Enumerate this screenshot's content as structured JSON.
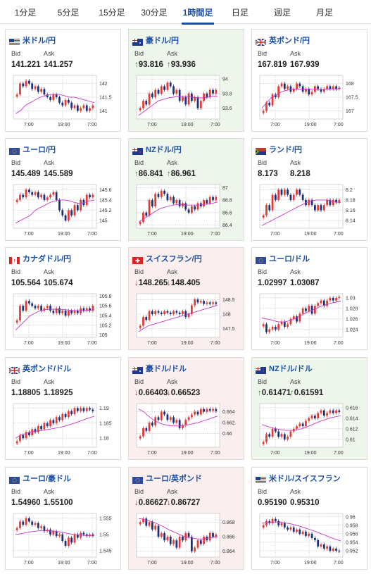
{
  "tabs": [
    "1分足",
    "5分足",
    "15分足",
    "30分足",
    "1時間足",
    "日足",
    "週足",
    "月足"
  ],
  "active_tab": 4,
  "labels": {
    "bid": "Bid",
    "ask": "Ask"
  },
  "colors": {
    "accent": "#1a4fa3",
    "up_bg": "#eef6ec",
    "down_bg": "#fbeeee",
    "candle_up": "#e53935",
    "candle_down": "#1c2f7a",
    "ma": "#c836c8"
  },
  "cards": [
    {
      "title": "米ドル/円",
      "bid": "141.221",
      "ask": "141.257",
      "trend": "none",
      "flag": "us",
      "ticks": [
        "142",
        "141.5",
        "141"
      ],
      "ylim": [
        140.7,
        142.3
      ],
      "xlabels": [
        "7:00",
        "19:00",
        "7:00"
      ],
      "chart_data": {
        "type": "candlestick",
        "ylim": [
          140.7,
          142.3
        ],
        "closes": [
          141.6,
          142.0,
          141.9,
          142.1,
          142.0,
          141.8,
          141.9,
          141.7,
          141.8,
          141.6,
          141.5,
          141.4,
          141.6,
          141.5,
          141.3,
          141.2,
          141.4,
          141.3,
          141.1,
          141.2,
          141.0,
          141.1,
          141.2,
          141.0,
          141.1,
          141.2
        ],
        "ma": [
          140.9,
          141.0,
          141.2,
          141.3,
          141.4,
          141.5,
          141.55,
          141.6,
          141.6,
          141.6,
          141.55,
          141.5,
          141.5,
          141.45,
          141.4,
          141.35,
          141.3
        ]
      }
    },
    {
      "title": "豪ドル/円",
      "bid": "93.816",
      "ask": "93.936",
      "trend": "up",
      "flag": "au",
      "ticks": [
        "94",
        "93.8",
        "93.6"
      ],
      "ylim": [
        93.45,
        94.05
      ],
      "xlabels": [
        "7:00",
        "19:00",
        "7:00"
      ],
      "chart_data": {
        "type": "candlestick",
        "ylim": [
          93.45,
          94.05
        ],
        "closes": [
          93.6,
          93.7,
          93.65,
          93.8,
          93.75,
          93.85,
          93.8,
          93.9,
          93.85,
          93.95,
          93.9,
          93.8,
          93.85,
          93.7,
          93.75,
          93.65,
          93.8,
          93.7,
          93.75,
          93.6,
          93.7,
          93.8,
          93.75,
          93.85,
          93.8,
          93.85
        ],
        "ma": [
          93.5,
          93.55,
          93.6,
          93.65,
          93.7,
          93.72,
          93.74,
          93.75,
          93.76,
          93.76,
          93.76,
          93.75,
          93.74,
          93.74,
          93.75,
          93.76,
          93.76
        ]
      }
    },
    {
      "title": "英ポンド/円",
      "bid": "167.819",
      "ask": "167.939",
      "trend": "none",
      "flag": "gb",
      "ticks": [
        "168",
        "167.5",
        "167"
      ],
      "ylim": [
        166.7,
        168.3
      ],
      "xlabels": [
        "7:00",
        "19:00",
        "7:00"
      ],
      "chart_data": {
        "type": "candlestick",
        "ylim": [
          166.7,
          168.3
        ],
        "closes": [
          167.0,
          167.3,
          167.2,
          167.6,
          167.5,
          167.9,
          168.0,
          167.8,
          167.9,
          167.7,
          167.8,
          168.0,
          167.9,
          167.7,
          167.8,
          167.6,
          167.7,
          167.9,
          167.8,
          167.7,
          167.8,
          167.9,
          167.8,
          167.9,
          167.8,
          167.85
        ],
        "ma": [
          167.1,
          167.3,
          167.5,
          167.6,
          167.7,
          167.75,
          167.8,
          167.8,
          167.8,
          167.8,
          167.8,
          167.78,
          167.78,
          167.8,
          167.8,
          167.8,
          167.82
        ]
      }
    },
    {
      "title": "ユーロ/円",
      "bid": "145.489",
      "ask": "145.589",
      "trend": "none",
      "flag": "eu",
      "ticks": [
        "145.6",
        "145.4",
        "145.2",
        "145"
      ],
      "ylim": [
        144.85,
        145.7
      ],
      "xlabels": [
        "7:00",
        "19:00",
        "7:00"
      ],
      "chart_data": {
        "type": "candlestick",
        "ylim": [
          144.85,
          145.7
        ],
        "closes": [
          145.4,
          145.5,
          145.45,
          145.6,
          145.55,
          145.5,
          145.55,
          145.45,
          145.5,
          145.4,
          145.45,
          145.5,
          145.55,
          145.4,
          145.2,
          145.1,
          145.0,
          145.2,
          145.1,
          145.3,
          145.2,
          145.4,
          145.3,
          145.5,
          145.45,
          145.5
        ],
        "ma": [
          144.95,
          145.0,
          145.05,
          145.1,
          145.2,
          145.25,
          145.3,
          145.35,
          145.38,
          145.4,
          145.4,
          145.38,
          145.35,
          145.33,
          145.35,
          145.38,
          145.4
        ]
      }
    },
    {
      "title": "NZドル/円",
      "bid": "86.841",
      "ask": "86.961",
      "trend": "up",
      "flag": "nz",
      "ticks": [
        "87",
        "86.8",
        "86.6",
        "86.4"
      ],
      "ylim": [
        86.35,
        87.05
      ],
      "xlabels": [
        "7:00",
        "19:00",
        "7:00"
      ],
      "chart_data": {
        "type": "candlestick",
        "ylim": [
          86.35,
          87.05
        ],
        "closes": [
          86.45,
          86.6,
          86.55,
          86.8,
          86.7,
          86.9,
          86.85,
          86.95,
          86.9,
          86.8,
          86.85,
          86.75,
          86.8,
          86.7,
          86.75,
          86.65,
          86.6,
          86.7,
          86.65,
          86.75,
          86.7,
          86.8,
          86.75,
          86.85,
          86.8,
          86.85
        ],
        "ma": [
          86.45,
          86.5,
          86.55,
          86.6,
          86.65,
          86.68,
          86.7,
          86.72,
          86.73,
          86.73,
          86.72,
          86.72,
          86.72,
          86.73,
          86.74,
          86.75,
          86.77
        ]
      }
    },
    {
      "title": "ランド/円",
      "bid": "8.173",
      "ask": "8.218",
      "trend": "none",
      "flag": "za",
      "ticks": [
        "8.2",
        "8.18",
        "8.16",
        "8.14"
      ],
      "ylim": [
        8.125,
        8.21
      ],
      "xlabels": [
        "7:00",
        "19:00",
        "7:00"
      ],
      "chart_data": {
        "type": "candlestick",
        "ylim": [
          8.125,
          8.21
        ],
        "closes": [
          8.15,
          8.17,
          8.16,
          8.19,
          8.18,
          8.2,
          8.19,
          8.2,
          8.19,
          8.18,
          8.19,
          8.2,
          8.19,
          8.18,
          8.17,
          8.18,
          8.17,
          8.16,
          8.17,
          8.16,
          8.17,
          8.18,
          8.17,
          8.18,
          8.175,
          8.18
        ],
        "ma": [
          8.13,
          8.135,
          8.14,
          8.145,
          8.15,
          8.155,
          8.16,
          8.165,
          8.17,
          8.175,
          8.178,
          8.18,
          8.18,
          8.18,
          8.178,
          8.176,
          8.175
        ]
      }
    },
    {
      "title": "カナダドル/円",
      "bid": "105.564",
      "ask": "105.674",
      "trend": "none",
      "flag": "ca",
      "ticks": [
        "105.8",
        "105.6",
        "105.4",
        "105.2",
        "105"
      ],
      "ylim": [
        104.95,
        105.85
      ],
      "xlabels": [
        "7:00",
        "19:00",
        "7:00"
      ],
      "chart_data": {
        "type": "candlestick",
        "ylim": [
          104.95,
          105.85
        ],
        "closes": [
          105.3,
          105.6,
          105.5,
          105.7,
          105.65,
          105.6,
          105.55,
          105.6,
          105.5,
          105.55,
          105.6,
          105.5,
          105.45,
          105.55,
          105.45,
          105.5,
          105.4,
          105.5,
          105.45,
          105.5,
          105.45,
          105.55,
          105.5,
          105.55,
          105.5,
          105.6
        ],
        "ma": [
          105.1,
          105.2,
          105.3,
          105.4,
          105.45,
          105.5,
          105.52,
          105.53,
          105.53,
          105.52,
          105.52,
          105.51,
          105.5,
          105.5,
          105.5,
          105.51,
          105.52
        ]
      }
    },
    {
      "title": "スイスフラン/円",
      "bid": "148.265",
      "ask": "148.405",
      "trend": "down",
      "flag": "ch",
      "ticks": [
        "148.5",
        "148",
        "147.5"
      ],
      "ylim": [
        147.2,
        148.7
      ],
      "xlabels": [
        "7:00",
        "19:00",
        "7:00"
      ],
      "chart_data": {
        "type": "candlestick",
        "ylim": [
          147.2,
          148.7
        ],
        "closes": [
          147.6,
          147.9,
          147.8,
          148.1,
          148.0,
          148.1,
          148.05,
          148.0,
          148.1,
          148.05,
          148.0,
          148.1,
          148.05,
          148.0,
          148.1,
          147.9,
          148.0,
          148.3,
          148.5,
          148.4,
          148.45,
          148.35,
          148.4,
          148.35,
          148.4,
          148.35
        ],
        "ma": [
          147.4,
          147.5,
          147.6,
          147.65,
          147.7,
          147.75,
          147.8,
          147.85,
          147.9,
          147.95,
          148.0,
          148.05,
          148.1,
          148.15,
          148.2,
          148.25,
          148.3
        ]
      }
    },
    {
      "title": "ユーロ/ドル",
      "bid": "1.02997",
      "ask": "1.03087",
      "trend": "none",
      "flag": "eu",
      "ticks": [
        "1.03",
        "1.028",
        "1.026",
        "1.024"
      ],
      "ylim": [
        1.0225,
        1.0308
      ],
      "xlabels": [
        "7:00",
        "19:00",
        "7:00"
      ],
      "chart_data": {
        "type": "candlestick",
        "ylim": [
          1.0225,
          1.0308
        ],
        "closes": [
          1.025,
          1.0235,
          1.024,
          1.0245,
          1.024,
          1.025,
          1.0255,
          1.0245,
          1.025,
          1.026,
          1.0265,
          1.0255,
          1.027,
          1.028,
          1.0275,
          1.0285,
          1.027,
          1.0285,
          1.029,
          1.0295,
          1.0285,
          1.0295,
          1.03,
          1.0295,
          1.03,
          1.0302
        ],
        "ma": [
          1.0262,
          1.026,
          1.0258,
          1.0255,
          1.0254,
          1.0255,
          1.0258,
          1.0262,
          1.0267,
          1.0272,
          1.0276,
          1.028,
          1.0284,
          1.0287,
          1.029,
          1.0292,
          1.0294
        ]
      }
    },
    {
      "title": "英ポンド/ドル",
      "bid": "1.18805",
      "ask": "1.18925",
      "trend": "none",
      "flag": "gb",
      "ticks": [
        "1.19",
        "1.185",
        "1.18"
      ],
      "ylim": [
        1.177,
        1.1915
      ],
      "xlabels": [
        "7:00",
        "19:00",
        "7:00"
      ],
      "chart_data": {
        "type": "candlestick",
        "ylim": [
          1.177,
          1.1915
        ],
        "closes": [
          1.179,
          1.181,
          1.18,
          1.182,
          1.181,
          1.183,
          1.182,
          1.184,
          1.183,
          1.185,
          1.184,
          1.186,
          1.185,
          1.187,
          1.186,
          1.188,
          1.187,
          1.189,
          1.188,
          1.19,
          1.189,
          1.19,
          1.189,
          1.19,
          1.1895,
          1.189
        ],
        "ma": [
          1.18,
          1.181,
          1.1815,
          1.182,
          1.1823,
          1.1825,
          1.1828,
          1.183,
          1.1833,
          1.1836,
          1.184,
          1.1845,
          1.185,
          1.1856,
          1.1862,
          1.1868,
          1.1873
        ]
      }
    },
    {
      "title": "豪ドル/ドル",
      "bid": "0.66403",
      "ask": "0.66523",
      "trend": "down",
      "flag": "au",
      "ticks": [
        "0.664",
        "0.662",
        "0.66"
      ],
      "ylim": [
        0.6575,
        0.6655
      ],
      "xlabels": [
        "7:00",
        "19:00",
        "7:00"
      ],
      "chart_data": {
        "type": "candlestick",
        "ylim": [
          0.6575,
          0.6655
        ],
        "closes": [
          0.6595,
          0.661,
          0.6605,
          0.662,
          0.6615,
          0.663,
          0.6625,
          0.664,
          0.6635,
          0.6625,
          0.663,
          0.662,
          0.6625,
          0.661,
          0.6615,
          0.6625,
          0.663,
          0.6635,
          0.664,
          0.6635,
          0.6645,
          0.664,
          0.6645,
          0.6642,
          0.6645,
          0.6641
        ],
        "ma": [
          0.6645,
          0.664,
          0.6632,
          0.6625,
          0.662,
          0.6617,
          0.6615,
          0.6614,
          0.6614,
          0.6615,
          0.6616,
          0.6618,
          0.662,
          0.6623,
          0.6626,
          0.6629,
          0.6632
        ]
      }
    },
    {
      "title": "NZドル/ドル",
      "bid": "0.61471",
      "ask": "0.61591",
      "trend": "up",
      "flag": "nz",
      "ticks": [
        "0.616",
        "0.614",
        "0.612",
        "0.61"
      ],
      "ylim": [
        0.6085,
        0.6168
      ],
      "xlabels": [
        "7:00",
        "19:00",
        "7:00"
      ],
      "chart_data": {
        "type": "candlestick",
        "ylim": [
          0.6085,
          0.6168
        ],
        "closes": [
          0.6095,
          0.611,
          0.6105,
          0.612,
          0.6115,
          0.6105,
          0.611,
          0.61,
          0.6105,
          0.6115,
          0.612,
          0.6125,
          0.613,
          0.6125,
          0.6135,
          0.614,
          0.6145,
          0.614,
          0.615,
          0.6155,
          0.6145,
          0.615,
          0.6155,
          0.615,
          0.6155,
          0.6152
        ],
        "ma": [
          0.6128,
          0.6125,
          0.6122,
          0.612,
          0.6118,
          0.6117,
          0.6117,
          0.6118,
          0.612,
          0.6123,
          0.6127,
          0.6131,
          0.6135,
          0.6138,
          0.6141,
          0.6143,
          0.6145
        ]
      }
    },
    {
      "title": "ユーロ/豪ドル",
      "bid": "1.54960",
      "ask": "1.55100",
      "trend": "none",
      "flag": "eu",
      "ticks": [
        "1.555",
        "1.55",
        "1.545"
      ],
      "ylim": [
        1.543,
        1.5565
      ],
      "xlabels": [
        "7:00",
        "19:00",
        "7:00"
      ],
      "chart_data": {
        "type": "candlestick",
        "ylim": [
          1.543,
          1.5565
        ],
        "closes": [
          1.552,
          1.554,
          1.553,
          1.555,
          1.554,
          1.553,
          1.5535,
          1.552,
          1.5525,
          1.551,
          1.5515,
          1.55,
          1.551,
          1.5495,
          1.55,
          1.548,
          1.5465,
          1.549,
          1.5475,
          1.55,
          1.549,
          1.5505,
          1.55,
          1.5495,
          1.55,
          1.5496
        ],
        "ma": [
          1.55,
          1.5502,
          1.5505,
          1.5508,
          1.551,
          1.5512,
          1.5512,
          1.5511,
          1.551,
          1.5508,
          1.5505,
          1.5502,
          1.55,
          1.5498,
          1.5497,
          1.5496,
          1.5496
        ]
      }
    },
    {
      "title": "ユーロ/英ポンド",
      "bid": "0.86627",
      "ask": "0.86727",
      "trend": "down",
      "flag": "eu",
      "ticks": [
        "0.868",
        "0.866",
        "0.864"
      ],
      "ylim": [
        0.8632,
        0.8692
      ],
      "xlabels": [
        "7:00",
        "19:00",
        "7:00"
      ],
      "chart_data": {
        "type": "candlestick",
        "ylim": [
          0.8632,
          0.8692
        ],
        "closes": [
          0.868,
          0.8685,
          0.8675,
          0.868,
          0.867,
          0.8675,
          0.866,
          0.8665,
          0.8655,
          0.866,
          0.865,
          0.8655,
          0.8645,
          0.866,
          0.8655,
          0.8665,
          0.866,
          0.864,
          0.8645,
          0.8655,
          0.865,
          0.866,
          0.8655,
          0.8665,
          0.866,
          0.8663
        ],
        "ma": [
          0.8685,
          0.8684,
          0.8682,
          0.868,
          0.8677,
          0.8674,
          0.867,
          0.8667,
          0.8664,
          0.8661,
          0.8659,
          0.8658,
          0.8657,
          0.8657,
          0.8658,
          0.8659,
          0.866
        ]
      }
    },
    {
      "title": "米ドル/スイスフラン",
      "bid": "0.95190",
      "ask": "0.95310",
      "trend": "none",
      "flag": "us",
      "ticks": [
        "0.96",
        "0.958",
        "0.956",
        "0.954",
        "0.952"
      ],
      "ylim": [
        0.9505,
        0.9608
      ],
      "xlabels": [
        "7:00",
        "19:00",
        "7:00"
      ],
      "chart_data": {
        "type": "candlestick",
        "ylim": [
          0.9505,
          0.9608
        ],
        "closes": [
          0.958,
          0.959,
          0.9585,
          0.9595,
          0.959,
          0.958,
          0.9585,
          0.9575,
          0.957,
          0.9575,
          0.9565,
          0.957,
          0.956,
          0.9565,
          0.9555,
          0.956,
          0.955,
          0.9545,
          0.953,
          0.9535,
          0.9525,
          0.953,
          0.952,
          0.9525,
          0.952,
          0.9519
        ],
        "ma": [
          0.9585,
          0.9586,
          0.9587,
          0.9588,
          0.9587,
          0.9585,
          0.9583,
          0.958,
          0.9577,
          0.9573,
          0.9569,
          0.9565,
          0.956,
          0.9556,
          0.9551,
          0.9547,
          0.9543
        ]
      }
    }
  ]
}
